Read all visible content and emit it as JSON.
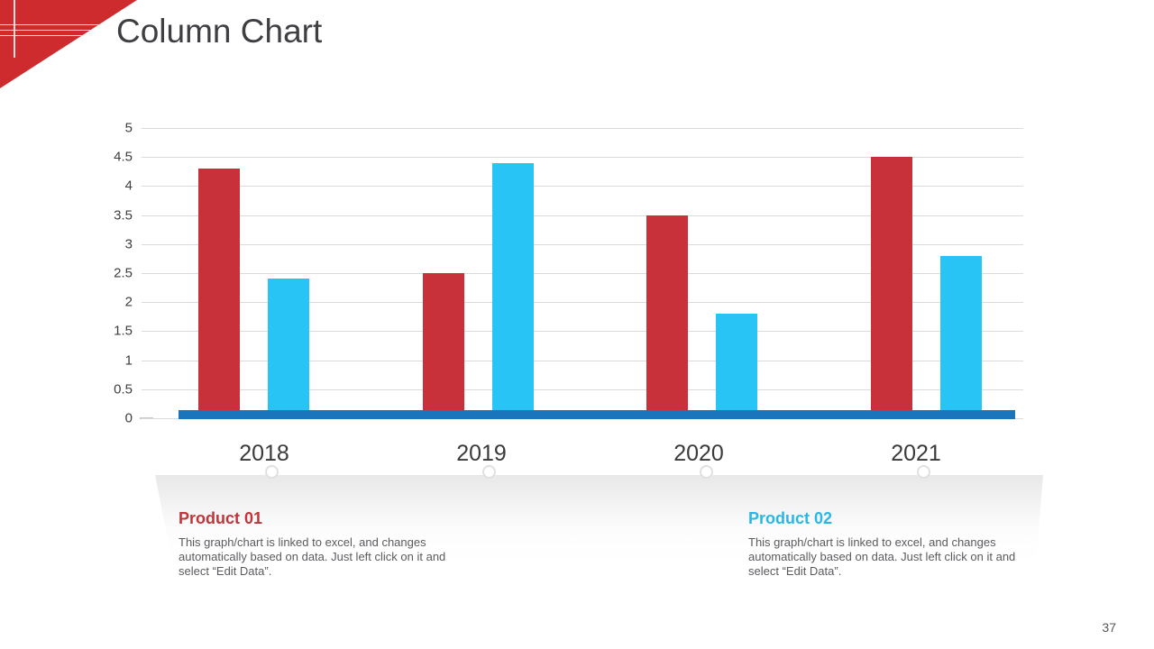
{
  "slide": {
    "title": "Column Chart",
    "page_number": "37",
    "accent_red": "#ce2b2e"
  },
  "chart_data": {
    "type": "bar",
    "title": "",
    "xlabel": "",
    "ylabel": "",
    "categories": [
      "2018",
      "2019",
      "2020",
      "2021"
    ],
    "series": [
      {
        "name": "Product 01",
        "color": "#c8313a",
        "values": [
          4.3,
          2.5,
          3.5,
          4.5
        ]
      },
      {
        "name": "Product 02",
        "color": "#27c4f5",
        "values": [
          2.4,
          4.4,
          1.8,
          2.8
        ]
      }
    ],
    "ylim": [
      0,
      5
    ],
    "ytick_step": 0.5,
    "yticks": [
      "5",
      "4.5",
      "4",
      "3.5",
      "3",
      "2.5",
      "2",
      "1.5",
      "1",
      "0.5",
      "0"
    ],
    "grid": true,
    "legend_position": "bottom",
    "baseline_color": "#1b75bc"
  },
  "legend": {
    "items": [
      {
        "label": "Product 01",
        "color": "#c23439",
        "description": "This graph/chart is linked to excel, and changes automatically based on data. Just left click on it and select “Edit Data”."
      },
      {
        "label": "Product 02",
        "color": "#29b6e8",
        "description": "This graph/chart is linked to excel, and changes automatically based on data. Just left click on it and select “Edit Data”."
      }
    ]
  }
}
